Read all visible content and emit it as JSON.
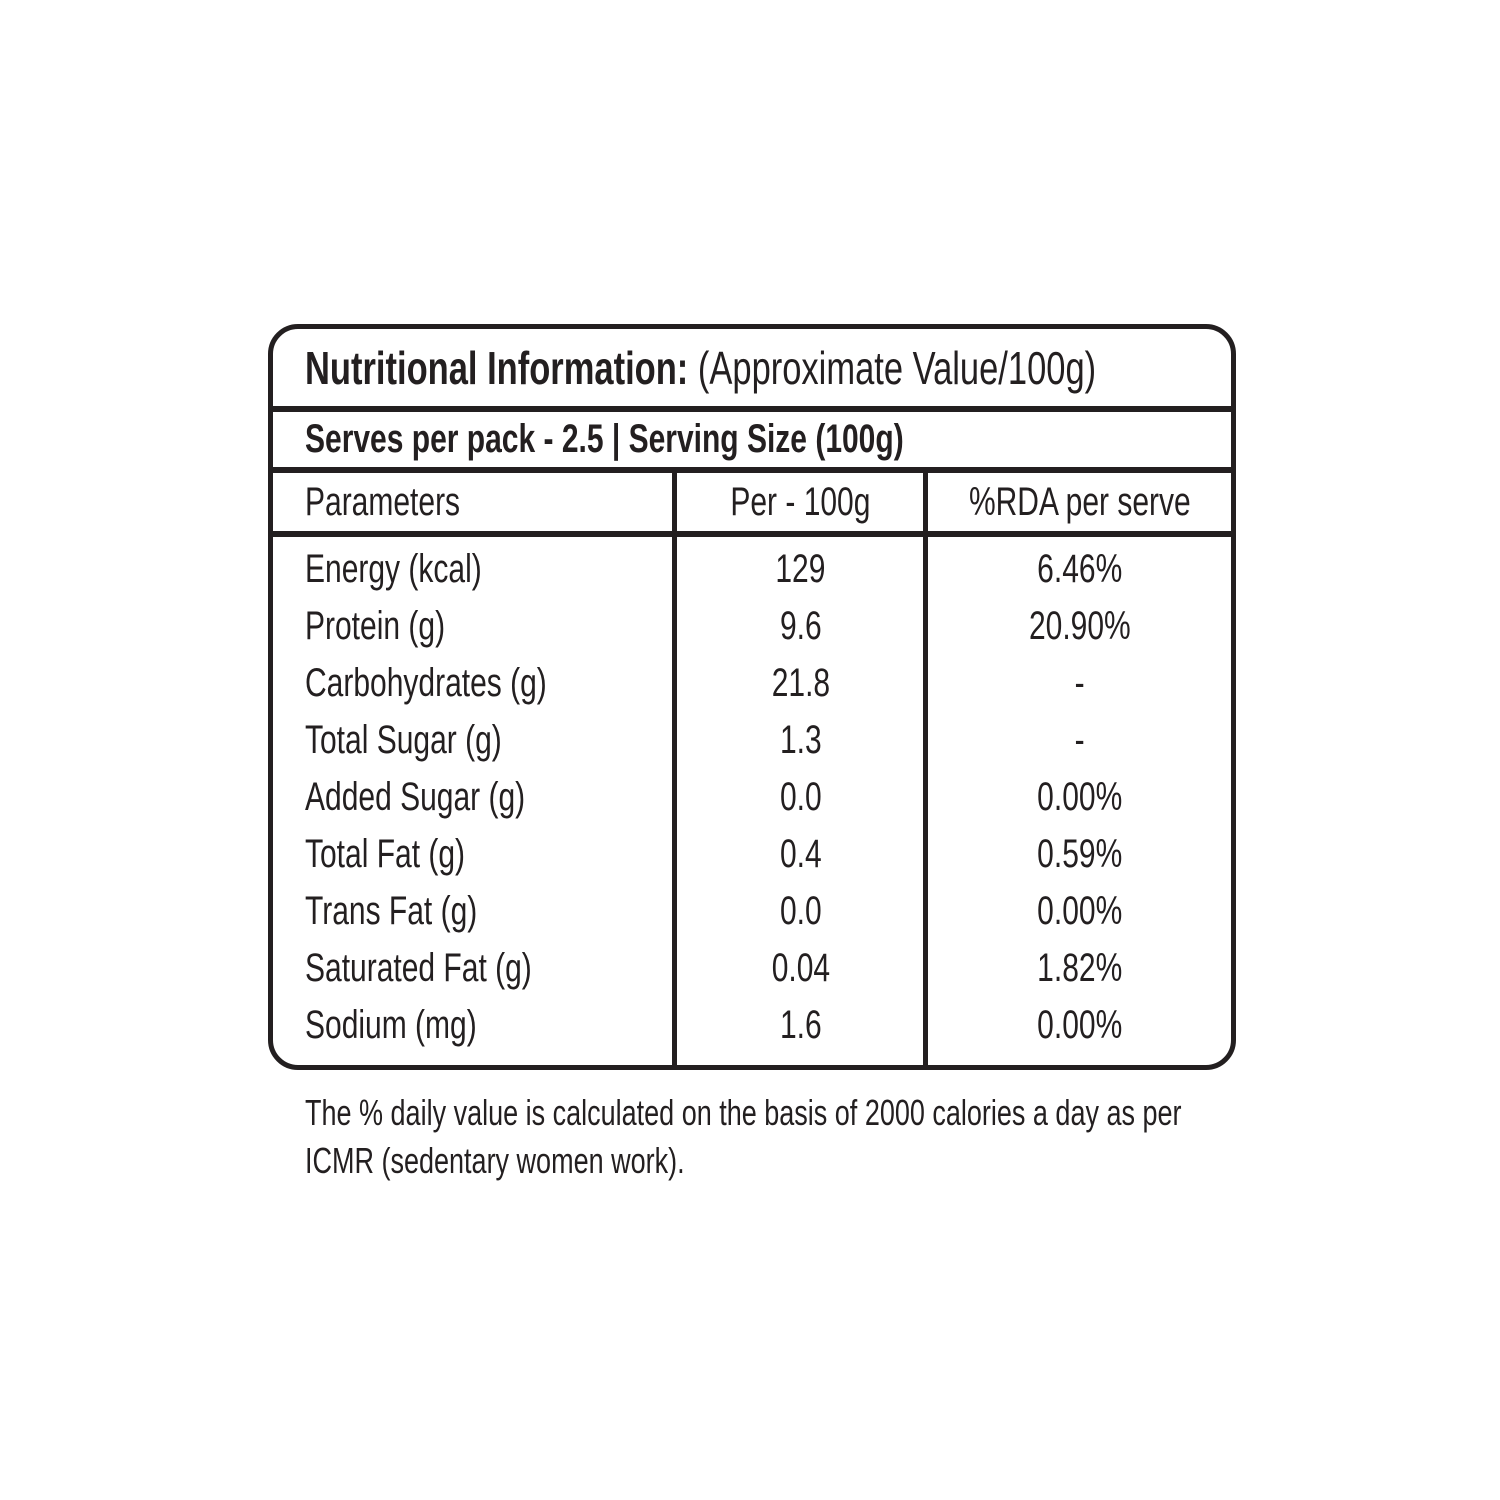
{
  "label": {
    "title_bold": "Nutritional Information:",
    "title_note": "(Approximate Value/100g)",
    "serving_line": "Serves per pack - 2.5 | Serving Size (100g)",
    "columns": {
      "parameters": "Parameters",
      "per_100g": "Per - 100g",
      "rda": "%RDA per serve"
    },
    "rows": [
      {
        "name": "Energy (kcal)",
        "per_100g": "129",
        "rda": "6.46%"
      },
      {
        "name": "Protein (g)",
        "per_100g": "9.6",
        "rda": "20.90%"
      },
      {
        "name": "Carbohydrates (g)",
        "per_100g": "21.8",
        "rda": "-"
      },
      {
        "name": "Total Sugar (g)",
        "per_100g": "1.3",
        "rda": "-"
      },
      {
        "name": "Added Sugar (g)",
        "per_100g": "0.0",
        "rda": "0.00%"
      },
      {
        "name": "Total Fat (g)",
        "per_100g": "0.4",
        "rda": "0.59%"
      },
      {
        "name": "Trans Fat (g)",
        "per_100g": "0.0",
        "rda": "0.00%"
      },
      {
        "name": "Saturated Fat (g)",
        "per_100g": "0.04",
        "rda": "1.82%"
      },
      {
        "name": "Sodium (mg)",
        "per_100g": "1.6",
        "rda": "0.00%"
      }
    ],
    "footnote_line1": "The % daily value is calculated on the basis of 2000 calories a day as per",
    "footnote_line2": "ICMR (sedentary women work).",
    "colors": {
      "ink": "#231f20",
      "background": "#ffffff"
    }
  }
}
